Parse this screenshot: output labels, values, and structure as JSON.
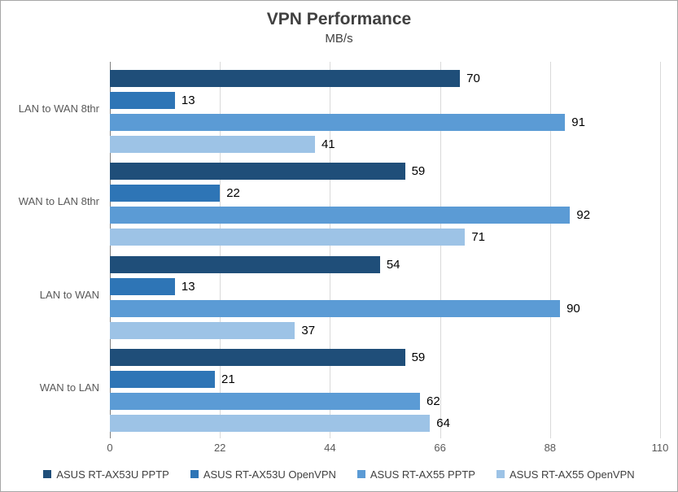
{
  "chart": {
    "title": "VPN Performance",
    "subtitle": "MB/s"
  },
  "chart_data": {
    "type": "bar",
    "orientation": "horizontal",
    "title": "VPN Performance",
    "subtitle": "MB/s",
    "categories": [
      "LAN to WAN 8thr",
      "WAN to LAN 8thr",
      "LAN to WAN",
      "WAN to LAN"
    ],
    "series": [
      {
        "name": "ASUS RT-AX53U PPTP",
        "color": "#1F4E79",
        "values": [
          70,
          59,
          54,
          59
        ]
      },
      {
        "name": "ASUS RT-AX53U OpenVPN",
        "color": "#2E75B6",
        "values": [
          13,
          22,
          13,
          21
        ]
      },
      {
        "name": "ASUS RT-AX55 PPTP",
        "color": "#5B9BD5",
        "values": [
          91,
          92,
          90,
          62
        ]
      },
      {
        "name": "ASUS RT-AX55 OpenVPN",
        "color": "#9DC3E6",
        "values": [
          41,
          71,
          37,
          64
        ]
      }
    ],
    "xlabel": "",
    "ylabel": "",
    "xlim": [
      0,
      110
    ],
    "x_ticks": [
      0,
      22,
      44,
      66,
      88,
      110
    ],
    "grid": true,
    "value_labels": true,
    "legend_position": "bottom"
  },
  "colors": {
    "background": "#FFFFFF",
    "border": "#A6A6A6",
    "gridline": "#D9D9D9",
    "axis_line": "#808080",
    "title_text": "#404040",
    "axis_text": "#595959",
    "value_text": "#000000"
  }
}
